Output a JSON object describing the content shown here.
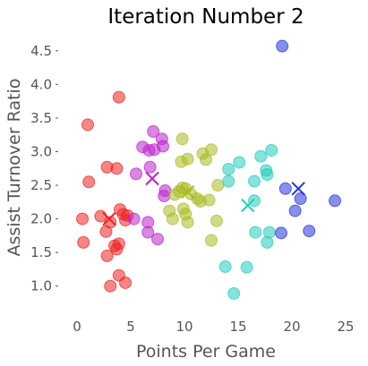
{
  "chart_data": {
    "type": "scatter",
    "title": "Iteration Number 2",
    "xlabel": "Points Per Game",
    "ylabel": "Assist Turnover Ratio",
    "xlim": [
      -2,
      26
    ],
    "ylim": [
      0.65,
      4.75
    ],
    "xticks": [
      0,
      5,
      10,
      15,
      20,
      25
    ],
    "yticks": [
      1.0,
      1.5,
      2.0,
      2.5,
      3.0,
      3.5,
      4.0,
      4.5
    ],
    "xtick_labels": [
      "0",
      "5",
      "10",
      "15",
      "20",
      "25"
    ],
    "ytick_labels": [
      "1.0",
      "1.5",
      "2.0",
      "2.5",
      "3.0",
      "3.5",
      "4.0",
      "4.5"
    ],
    "grid": false,
    "series": [
      {
        "color": "#ee2222",
        "points": [
          [
            1.0,
            3.4
          ],
          [
            1.1,
            2.55
          ],
          [
            2.8,
            2.77
          ],
          [
            3.7,
            2.75
          ],
          [
            3.9,
            3.81
          ],
          [
            2.2,
            2.04
          ],
          [
            2.7,
            1.81
          ],
          [
            3.1,
            1.95
          ],
          [
            3.5,
            1.6
          ],
          [
            3.9,
            1.63
          ],
          [
            4.0,
            2.14
          ],
          [
            4.3,
            2.07
          ],
          [
            4.5,
            1.98
          ],
          [
            4.7,
            2.05
          ],
          [
            0.5,
            2.0
          ],
          [
            0.6,
            1.65
          ],
          [
            2.8,
            1.45
          ],
          [
            3.1,
            1.0
          ],
          [
            3.9,
            1.16
          ],
          [
            4.5,
            1.05
          ],
          [
            3.7,
            1.55
          ]
        ],
        "centroid": [
          3.0,
          2.0
        ]
      },
      {
        "color": "#bb22cc",
        "points": [
          [
            6.1,
            3.07
          ],
          [
            7.1,
            3.3
          ],
          [
            6.7,
            3.02
          ],
          [
            7.2,
            3.03
          ],
          [
            7.9,
            3.19
          ],
          [
            8.0,
            3.08
          ],
          [
            6.8,
            2.77
          ],
          [
            5.5,
            2.67
          ],
          [
            8.2,
            2.42
          ],
          [
            8.1,
            2.34
          ],
          [
            6.6,
            1.95
          ],
          [
            6.6,
            1.8
          ],
          [
            5.3,
            2.0
          ],
          [
            7.5,
            1.7
          ]
        ],
        "centroid": [
          7.0,
          2.6
        ]
      },
      {
        "color": "#aabb22",
        "points": [
          [
            9.8,
            3.19
          ],
          [
            10.3,
            2.89
          ],
          [
            9.7,
            2.85
          ],
          [
            11.7,
            2.97
          ],
          [
            12.0,
            2.88
          ],
          [
            12.5,
            3.03
          ],
          [
            13.1,
            2.5
          ],
          [
            9.1,
            2.36
          ],
          [
            9.5,
            2.41
          ],
          [
            9.8,
            2.46
          ],
          [
            10.1,
            2.45
          ],
          [
            10.6,
            2.37
          ],
          [
            11.2,
            2.3
          ],
          [
            11.5,
            2.26
          ],
          [
            12.3,
            2.28
          ],
          [
            8.6,
            2.12
          ],
          [
            8.9,
            2.0
          ],
          [
            9.9,
            2.15
          ],
          [
            10.1,
            2.07
          ],
          [
            10.3,
            1.95
          ],
          [
            12.5,
            1.68
          ],
          [
            13.0,
            1.97
          ]
        ],
        "centroid": [
          10.3,
          2.4
        ]
      },
      {
        "color": "#22ccbb",
        "points": [
          [
            14.1,
            2.74
          ],
          [
            15.1,
            2.84
          ],
          [
            16.5,
            2.56
          ],
          [
            17.1,
            2.93
          ],
          [
            17.6,
            2.72
          ],
          [
            17.7,
            2.66
          ],
          [
            18.1,
            3.02
          ],
          [
            16.5,
            2.27
          ],
          [
            14.1,
            2.56
          ],
          [
            16.6,
            1.8
          ],
          [
            17.9,
            1.8
          ],
          [
            17.7,
            1.65
          ],
          [
            13.8,
            1.29
          ],
          [
            15.8,
            1.28
          ],
          [
            14.6,
            0.89
          ]
        ],
        "centroid": [
          15.9,
          2.2
        ]
      },
      {
        "color": "#2233dd",
        "points": [
          [
            19.1,
            4.57
          ],
          [
            19.4,
            2.45
          ],
          [
            20.3,
            2.12
          ],
          [
            20.8,
            2.3
          ],
          [
            24.0,
            2.27
          ],
          [
            21.6,
            1.82
          ],
          [
            19.0,
            1.79
          ]
        ],
        "centroid": [
          20.6,
          2.45
        ]
      }
    ]
  }
}
